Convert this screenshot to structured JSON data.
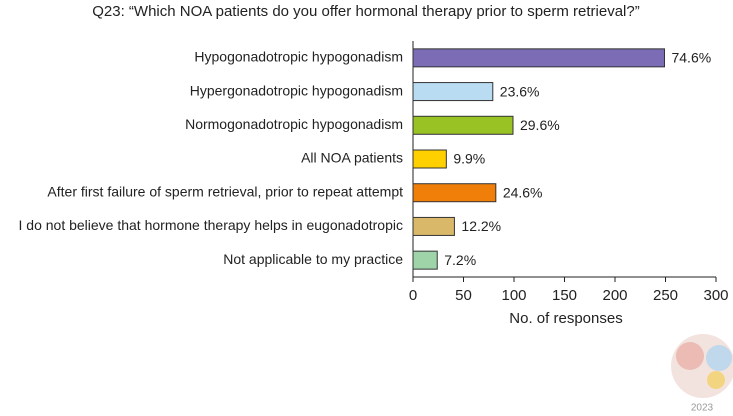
{
  "chart_data": {
    "type": "hbar",
    "title": "Q23: “Which NOA patients do you offer hormonal therapy prior to sperm retrieval?”",
    "x_label": "No. of responses",
    "categories": [
      "Hypogonadotropic hypogonadism",
      "Hypergonadotropic hypogonadism",
      "Normogonadotropic hypogonadism",
      "All NOA patients",
      "After first failure of sperm retrieval, prior to repeat attempt",
      "I do not believe that hormone therapy helps in eugonadotropic",
      "Not applicable to my practice"
    ],
    "values": [
      249,
      79,
      99,
      33,
      82,
      41,
      24
    ],
    "value_labels": [
      "74.6%",
      "23.6%",
      "29.6%",
      "9.9%",
      "24.6%",
      "12.2%",
      "7.2%"
    ],
    "colors": [
      "#7b6cb5",
      "#b9dcf2",
      "#99c224",
      "#ffd000",
      "#f07f09",
      "#d9b86a",
      "#9fd3a8"
    ],
    "xlim": [
      0,
      300
    ],
    "xticks": [
      0,
      50,
      100,
      150,
      200,
      250,
      300
    ]
  },
  "watermark": "2023"
}
